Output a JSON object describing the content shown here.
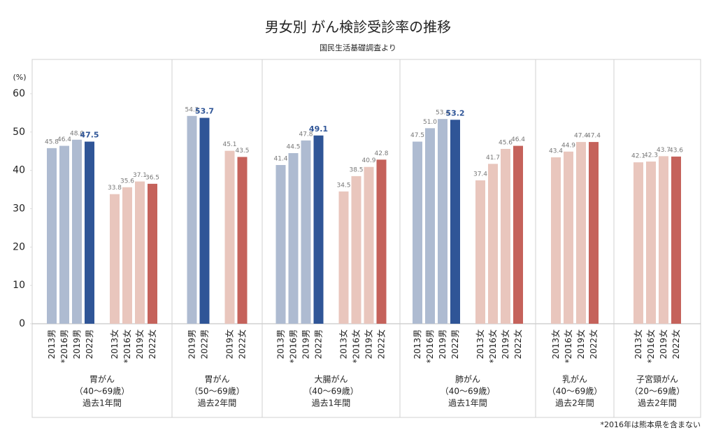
{
  "chart_data": {
    "type": "bar",
    "title": "男女別 がん検診受診率の推移",
    "subtitle": "国民生活基礎調査より",
    "y_label": "(%)",
    "ylim": [
      0,
      60
    ],
    "yticks": [
      0,
      10,
      20,
      30,
      40,
      50,
      60
    ],
    "footnote": "*2016年は熊本県を含まない",
    "groups": [
      {
        "name": "胃がん",
        "age": "（40～69歳）",
        "period": "過去1年間",
        "categories": [
          "2013男",
          "*2016男",
          "2019男",
          "2022男",
          "2013女",
          "*2016女",
          "2019女",
          "2022女"
        ],
        "values": [
          45.8,
          46.4,
          48.0,
          47.5,
          33.8,
          35.6,
          37.1,
          36.5
        ],
        "value_labels": [
          "45.8",
          "46.4",
          "48.0",
          "47.5",
          "33.8",
          "35.6",
          "37.1",
          "36.5"
        ],
        "colors": [
          "#aebbd1",
          "#aebbd1",
          "#aebbd1",
          "#2f5597",
          "#e9c6bd",
          "#e9c6bd",
          "#e9c6bd",
          "#c5625b"
        ]
      },
      {
        "name": "胃がん",
        "age": "（50～69歳）",
        "period": "過去2年間",
        "categories": [
          "2019男",
          "2022男",
          "2019女",
          "2022女"
        ],
        "values": [
          54.2,
          53.7,
          45.1,
          43.5
        ],
        "value_labels": [
          "54.2",
          "53.7",
          "45.1",
          "43.5"
        ],
        "colors": [
          "#aebbd1",
          "#2f5597",
          "#e9c6bd",
          "#c5625b"
        ]
      },
      {
        "name": "大腸がん",
        "age": "（40～69歳）",
        "period": "過去1年間",
        "categories": [
          "2013男",
          "*2016男",
          "2019男",
          "2022男",
          "2013女",
          "*2016女",
          "2019女",
          "2022女"
        ],
        "values": [
          41.4,
          44.5,
          47.8,
          49.1,
          34.5,
          38.5,
          40.9,
          42.8
        ],
        "value_labels": [
          "41.4",
          "44.5",
          "47.8",
          "49.1",
          "34.5",
          "38.5",
          "40.9",
          "42.8"
        ],
        "colors": [
          "#aebbd1",
          "#aebbd1",
          "#aebbd1",
          "#2f5597",
          "#e9c6bd",
          "#e9c6bd",
          "#e9c6bd",
          "#c5625b"
        ]
      },
      {
        "name": "肺がん",
        "age": "（40～69歳）",
        "period": "過去1年間",
        "categories": [
          "2013男",
          "*2016男",
          "2019男",
          "2022男",
          "2013女",
          "*2016女",
          "2019女",
          "2022女"
        ],
        "values": [
          47.5,
          51.0,
          53.4,
          53.2,
          37.4,
          41.7,
          45.6,
          46.4
        ],
        "value_labels": [
          "47.5",
          "51.0",
          "53.4",
          "53.2",
          "37.4",
          "41.7",
          "45.6",
          "46.4"
        ],
        "colors": [
          "#aebbd1",
          "#aebbd1",
          "#aebbd1",
          "#2f5597",
          "#e9c6bd",
          "#e9c6bd",
          "#e9c6bd",
          "#c5625b"
        ]
      },
      {
        "name": "乳がん",
        "age": "（40～69歳）",
        "period": "過去2年間",
        "categories": [
          "2013女",
          "*2016女",
          "2019女",
          "2022女"
        ],
        "values": [
          43.4,
          44.9,
          47.4,
          47.4
        ],
        "value_labels": [
          "43.4",
          "44.9",
          "47.4",
          "47.4"
        ],
        "colors": [
          "#e9c6bd",
          "#e9c6bd",
          "#e9c6bd",
          "#c5625b"
        ]
      },
      {
        "name": "子宮頸がん",
        "age": "（20～69歳）",
        "period": "過去2年間",
        "categories": [
          "2013女",
          "*2016女",
          "2019女",
          "2022女"
        ],
        "values": [
          42.1,
          42.3,
          43.7,
          43.6
        ],
        "value_labels": [
          "42.1",
          "42.3",
          "43.7",
          "43.6"
        ],
        "colors": [
          "#e9c6bd",
          "#e9c6bd",
          "#e9c6bd",
          "#c5625b"
        ]
      }
    ]
  }
}
